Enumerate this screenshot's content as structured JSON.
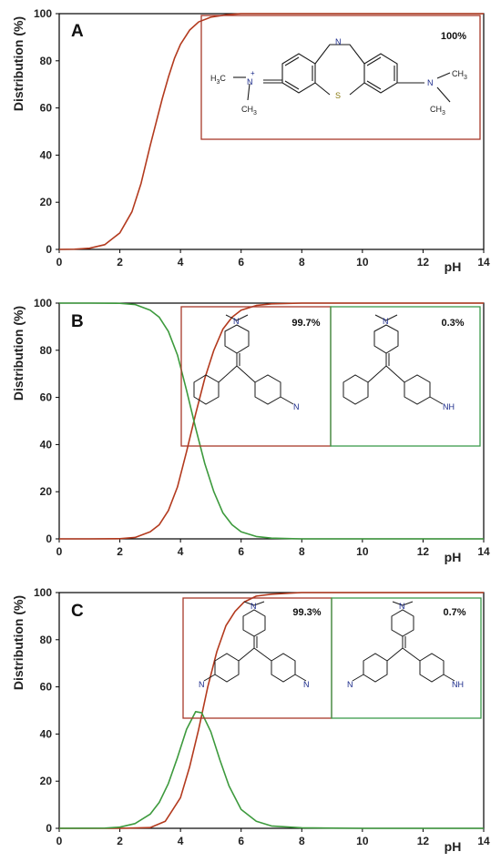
{
  "colors": {
    "red": "#b33a1e",
    "green": "#3d9a3d",
    "box_red": "#a8382a",
    "box_green": "#3c9a4a",
    "axis": "#000000"
  },
  "chart_data": [
    {
      "type": "line",
      "panel_label": "A",
      "xlabel": "pH",
      "ylabel": "Distribution (%)",
      "xlim": [
        0,
        14
      ],
      "ylim": [
        0,
        100
      ],
      "xticks": [
        0,
        2,
        4,
        6,
        8,
        10,
        12,
        14
      ],
      "yticks": [
        0,
        20,
        40,
        60,
        80,
        100
      ],
      "grid": false,
      "series": [
        {
          "color": "red",
          "x": [
            0.0,
            0.5,
            1.0,
            1.5,
            2.0,
            2.4,
            2.7,
            3.0,
            3.2,
            3.4,
            3.6,
            3.8,
            4.0,
            4.3,
            4.6,
            5.0,
            5.5,
            6.0,
            7.0,
            8.0,
            10.0,
            12.0,
            14.0
          ],
          "values": [
            0,
            0.1,
            0.5,
            2,
            7,
            16,
            28,
            44,
            54,
            64,
            73,
            81,
            87,
            93,
            96.5,
            98.5,
            99.5,
            100,
            100,
            100,
            100,
            100,
            100
          ]
        }
      ],
      "insets": [
        {
          "frame": "red",
          "label": "100%",
          "structure": "methylene-blue"
        }
      ]
    },
    {
      "type": "line",
      "panel_label": "B",
      "xlabel": "pH",
      "ylabel": "Distribution (%)",
      "xlim": [
        0,
        14
      ],
      "ylim": [
        0,
        100
      ],
      "xticks": [
        0,
        2,
        4,
        6,
        8,
        10,
        12,
        14
      ],
      "yticks": [
        0,
        20,
        40,
        60,
        80,
        100
      ],
      "grid": false,
      "series": [
        {
          "color": "red",
          "x": [
            0.0,
            1.0,
            2.0,
            2.5,
            3.0,
            3.3,
            3.6,
            3.9,
            4.2,
            4.5,
            4.8,
            5.1,
            5.4,
            5.7,
            6.0,
            6.5,
            7.0,
            8.0,
            10.0,
            14.0
          ],
          "values": [
            0,
            0,
            0.1,
            0.6,
            3,
            6,
            12,
            22,
            37,
            53,
            68,
            80,
            89,
            94,
            97,
            99,
            99.7,
            100,
            100,
            100
          ]
        },
        {
          "color": "green",
          "x": [
            0.0,
            1.0,
            2.0,
            2.5,
            3.0,
            3.3,
            3.6,
            3.9,
            4.2,
            4.5,
            4.8,
            5.1,
            5.4,
            5.7,
            6.0,
            6.5,
            7.0,
            8.0,
            10.0,
            14.0
          ],
          "values": [
            100,
            100,
            99.9,
            99.4,
            97,
            94,
            88,
            78,
            63,
            47,
            32,
            20,
            11,
            6,
            3,
            1,
            0.3,
            0,
            0,
            0
          ]
        }
      ],
      "insets": [
        {
          "frame": "red",
          "label": "99.7%",
          "structure": "malachite-green-cation"
        },
        {
          "frame": "green",
          "label": "0.3%",
          "structure": "malachite-green-protonated"
        }
      ]
    },
    {
      "type": "line",
      "panel_label": "C",
      "xlabel": "pH",
      "ylabel": "Distribution (%)",
      "xlim": [
        0,
        14
      ],
      "ylim": [
        0,
        100
      ],
      "xticks": [
        0,
        2,
        4,
        6,
        8,
        10,
        12,
        14
      ],
      "yticks": [
        0,
        20,
        40,
        60,
        80,
        100
      ],
      "grid": false,
      "series": [
        {
          "color": "red",
          "x": [
            0.0,
            2.0,
            3.0,
            3.5,
            4.0,
            4.3,
            4.6,
            4.9,
            5.2,
            5.5,
            5.8,
            6.1,
            6.5,
            7.0,
            8.0,
            10.0,
            14.0
          ],
          "values": [
            0,
            0,
            0.3,
            3,
            13,
            26,
            42,
            60,
            75,
            86,
            92,
            96,
            98.5,
            99.3,
            100,
            100,
            100
          ]
        },
        {
          "color": "green",
          "x": [
            0.0,
            1.5,
            2.0,
            2.5,
            3.0,
            3.3,
            3.6,
            3.9,
            4.2,
            4.5,
            4.7,
            5.0,
            5.3,
            5.6,
            6.0,
            6.5,
            7.0,
            8.0,
            10.0,
            14.0
          ],
          "values": [
            0,
            0.1,
            0.5,
            2,
            6,
            11,
            19,
            30,
            42,
            49.5,
            49,
            41,
            29,
            18,
            8,
            3,
            1,
            0.2,
            0,
            0
          ]
        }
      ],
      "insets": [
        {
          "frame": "red",
          "label": "99.3%",
          "structure": "crystal-violet-cation"
        },
        {
          "frame": "green",
          "label": "0.7%",
          "structure": "crystal-violet-protonated"
        }
      ]
    }
  ],
  "atoms": {
    "N": "N",
    "S": "S",
    "NH": "NH",
    "plus": "+",
    "CH3": "CH",
    "sub3": "3",
    "H3C_H": "H",
    "H3C_sub": "3",
    "H3C_C": "C"
  }
}
